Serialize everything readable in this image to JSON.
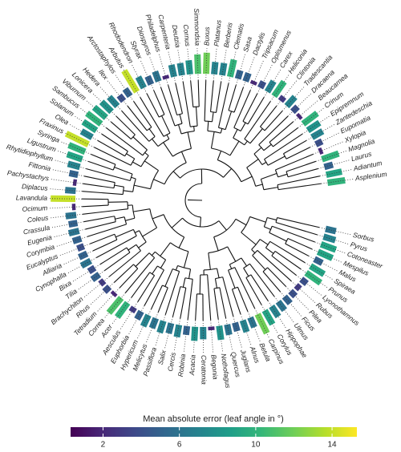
{
  "chart_data": {
    "type": "circular-tree",
    "categories": [
      "Asplenium",
      "Adiantum",
      "Laurus",
      "Magnolia",
      "Xylopia",
      "Eupomatia",
      "Zantedeschia",
      "Epipremnum",
      "Crinum",
      "Beaucarnea",
      "Dracaena",
      "Tradescantia",
      "Clintonia",
      "Heliconia",
      "Carex",
      "Oplismenus",
      "Tripsacum",
      "Dactylis",
      "Sasa",
      "Clematis",
      "Berberis",
      "Platanus",
      "Buxus",
      "Simmondsia",
      "Cornus",
      "Deutzia",
      "Carpenteria",
      "Philadelphus",
      "Diospyros",
      "Styrax",
      "Rhododendron",
      "Arbutus",
      "Arctostaphylos",
      "Ilex",
      "Hedera",
      "Lonicera",
      "Viburnum",
      "Sambucus",
      "Solanum",
      "Olea",
      "Fraxinus",
      "Syringa",
      "Ligustrum",
      "Rhytidiophyllum",
      "Fittonia",
      "Pachystachys",
      "Diplacus",
      "Lavandula",
      "Ocimum",
      "Coleus",
      "Crassula",
      "Eugenia",
      "Corymbia",
      "Eucalyptus",
      "Alliaria",
      "Cynophalla",
      "Bixa",
      "Tilia",
      "Brachychiton",
      "Rhus",
      "Tetradium",
      "Correa",
      "Acer",
      "Aesculus",
      "Euphorbia",
      "Hypericum",
      "Melicytus",
      "Passiflora",
      "Salix",
      "Cercis",
      "Robinia",
      "Acacia",
      "Ceratonia",
      "Begonia",
      "Nothofagus",
      "Quercus",
      "Juglans",
      "Alnus",
      "Betula",
      "Carpinus",
      "Corylus",
      "Hippophae",
      "Ulmus",
      "Ficus",
      "Pilea",
      "Rubus",
      "Lyonothamnus",
      "Prunus",
      "Spiraea",
      "Malus",
      "Mespilus",
      "Cotoneaster",
      "Pyrus",
      "Sorbus"
    ],
    "values": [
      10,
      9,
      5,
      10,
      2,
      4,
      7,
      8,
      10,
      2,
      4,
      7,
      3,
      10,
      7,
      4,
      2,
      5,
      5,
      10,
      7,
      7,
      12,
      11,
      8,
      7,
      7,
      2,
      6,
      5,
      7,
      14,
      5,
      4,
      7,
      8,
      9,
      10,
      9,
      7,
      14,
      10,
      9,
      7,
      5,
      2,
      6,
      14,
      2,
      6,
      5,
      6,
      5,
      4,
      5,
      6,
      4,
      5,
      3,
      4,
      2,
      11,
      10,
      3,
      5,
      7,
      6,
      7,
      6,
      7,
      5,
      8,
      7,
      2,
      8,
      6,
      5,
      7,
      6,
      12,
      9,
      7,
      6,
      5,
      4,
      3,
      4,
      10,
      9,
      5,
      9,
      9,
      7,
      6
    ],
    "colormap": "viridis",
    "colorbar_title": "Mean absolute error (leaf angle in °)",
    "clim": [
      0.3,
      15.3
    ],
    "cticks": [
      2,
      6,
      10,
      14
    ]
  }
}
